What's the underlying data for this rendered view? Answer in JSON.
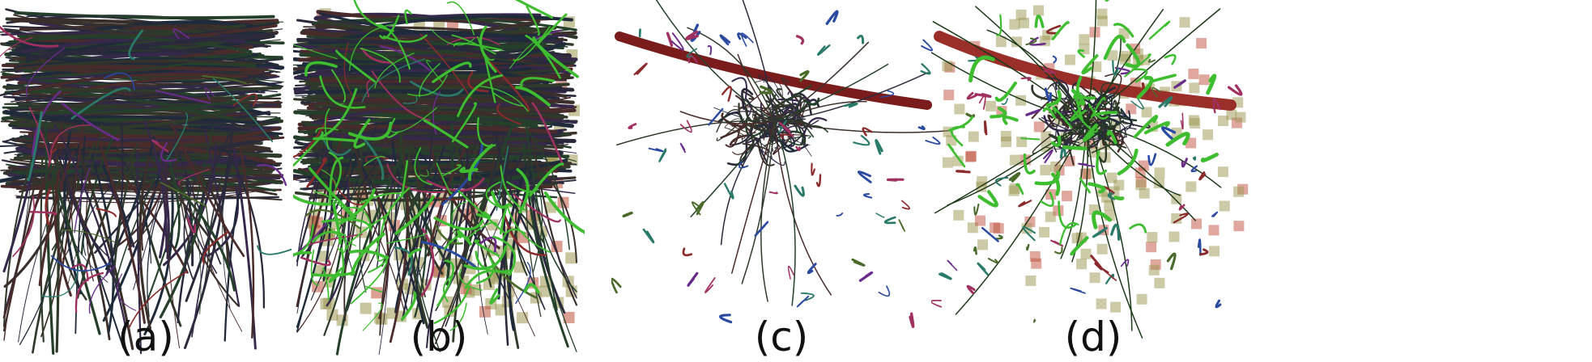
{
  "panels": [
    {
      "label": "(a)"
    },
    {
      "label": "(b)"
    },
    {
      "label": "(c)"
    },
    {
      "label": "(d)"
    }
  ],
  "colors": {
    "background": "#ffffff",
    "dense_fibers": [
      "#2b2a3c",
      "#3a2f2a",
      "#24402a",
      "#35284a",
      "#1f2a3a",
      "#4a2b2b",
      "#2f3a2a"
    ],
    "accent_fibers": [
      "#6a2c8a",
      "#2a4aa0",
      "#8b2a2a",
      "#4a6a2a",
      "#2a7a6a",
      "#a03060"
    ],
    "vessel_red": "#7a1c1c",
    "overlay_green": "#3dbd2f",
    "overlay_olive": "#9b9550",
    "overlay_red": "#c0503c"
  }
}
